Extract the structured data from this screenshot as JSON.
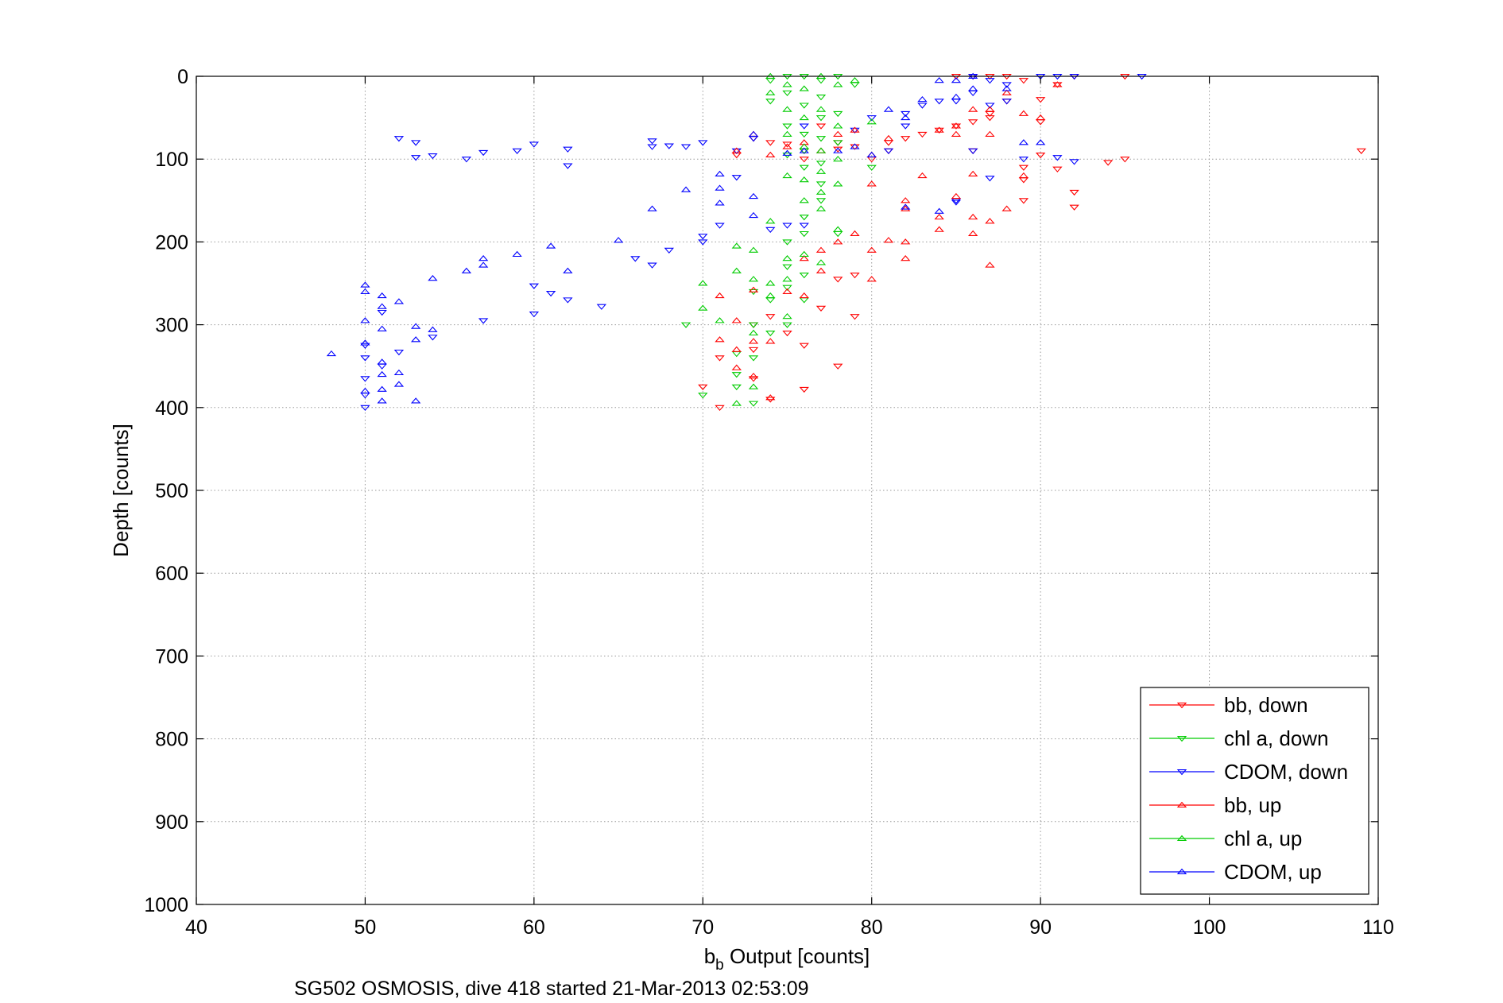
{
  "chart_data": {
    "type": "scatter",
    "title": "",
    "caption": "SG502 OSMOSIS, dive 418 started 21-Mar-2013 02:53:09",
    "xlabel_main": "b",
    "xlabel_sub": "b",
    "xlabel_rest": " Output [counts]",
    "ylabel": "Depth [counts]",
    "xlim": [
      40,
      110
    ],
    "ylim": [
      0,
      1000
    ],
    "y_reversed": true,
    "grid": true,
    "legend_placement": "bottom-right",
    "x_ticks": [
      40,
      50,
      60,
      70,
      80,
      90,
      100,
      110
    ],
    "y_ticks": [
      0,
      100,
      200,
      300,
      400,
      500,
      600,
      700,
      800,
      900,
      1000
    ],
    "series": [
      {
        "name": "bb, down",
        "color": "#ff0000",
        "marker": "triangle-down",
        "points": [
          [
            72,
            95
          ],
          [
            73,
            75
          ],
          [
            74,
            80
          ],
          [
            75,
            82
          ],
          [
            76,
            100
          ],
          [
            76,
            90
          ],
          [
            77,
            60
          ],
          [
            78,
            80
          ],
          [
            78,
            88
          ],
          [
            79,
            85
          ],
          [
            80,
            100
          ],
          [
            81,
            80
          ],
          [
            81,
            90
          ],
          [
            82,
            75
          ],
          [
            83,
            70
          ],
          [
            84,
            65
          ],
          [
            85,
            0
          ],
          [
            85,
            60
          ],
          [
            86,
            0
          ],
          [
            86,
            55
          ],
          [
            86,
            90
          ],
          [
            87,
            0
          ],
          [
            87,
            45
          ],
          [
            87,
            50
          ],
          [
            88,
            0
          ],
          [
            88,
            30
          ],
          [
            89,
            5
          ],
          [
            89,
            110
          ],
          [
            89,
            125
          ],
          [
            89,
            150
          ],
          [
            90,
            28
          ],
          [
            90,
            55
          ],
          [
            90,
            95
          ],
          [
            91,
            10
          ],
          [
            91,
            112
          ],
          [
            92,
            0
          ],
          [
            92,
            140
          ],
          [
            92,
            158
          ],
          [
            94,
            104
          ],
          [
            95,
            0
          ],
          [
            95,
            100
          ],
          [
            109,
            90
          ],
          [
            73,
            300
          ],
          [
            73,
            330
          ],
          [
            74,
            390
          ],
          [
            75,
            310
          ],
          [
            76,
            325
          ],
          [
            77,
            280
          ],
          [
            78,
            245
          ],
          [
            78,
            350
          ],
          [
            79,
            240
          ],
          [
            79,
            290
          ],
          [
            73,
            365
          ],
          [
            71,
            340
          ],
          [
            71,
            400
          ],
          [
            70,
            375
          ],
          [
            74,
            290
          ],
          [
            76,
            378
          ]
        ]
      },
      {
        "name": "chl a, down",
        "color": "#00cc00",
        "marker": "triangle-down",
        "points": [
          [
            74,
            5
          ],
          [
            74,
            30
          ],
          [
            75,
            0
          ],
          [
            75,
            20
          ],
          [
            75,
            60
          ],
          [
            76,
            0
          ],
          [
            76,
            35
          ],
          [
            76,
            70
          ],
          [
            76,
            90
          ],
          [
            77,
            5
          ],
          [
            77,
            25
          ],
          [
            77,
            50
          ],
          [
            77,
            75
          ],
          [
            77,
            105
          ],
          [
            78,
            0
          ],
          [
            78,
            45
          ],
          [
            78,
            80
          ],
          [
            79,
            10
          ],
          [
            80,
            110
          ],
          [
            75,
            95
          ],
          [
            76,
            110
          ],
          [
            77,
            130
          ],
          [
            77,
            150
          ],
          [
            76,
            170
          ],
          [
            75,
            200
          ],
          [
            76,
            190
          ],
          [
            78,
            190
          ],
          [
            72,
            335
          ],
          [
            73,
            260
          ],
          [
            73,
            300
          ],
          [
            73,
            340
          ],
          [
            74,
            270
          ],
          [
            74,
            310
          ],
          [
            75,
            230
          ],
          [
            75,
            255
          ],
          [
            75,
            300
          ],
          [
            76,
            240
          ],
          [
            76,
            270
          ],
          [
            72,
            360
          ],
          [
            72,
            375
          ],
          [
            73,
            395
          ],
          [
            70,
            385
          ],
          [
            69,
            300
          ]
        ]
      },
      {
        "name": "CDOM, down",
        "color": "#0000ff",
        "marker": "triangle-down",
        "points": [
          [
            52,
            75
          ],
          [
            53,
            80
          ],
          [
            53,
            98
          ],
          [
            54,
            96
          ],
          [
            56,
            100
          ],
          [
            57,
            92
          ],
          [
            59,
            90
          ],
          [
            60,
            82
          ],
          [
            62,
            88
          ],
          [
            62,
            108
          ],
          [
            67,
            78
          ],
          [
            67,
            85
          ],
          [
            68,
            84
          ],
          [
            69,
            85
          ],
          [
            70,
            80
          ],
          [
            72,
            90
          ],
          [
            73,
            75
          ],
          [
            76,
            60
          ],
          [
            76,
            180
          ],
          [
            79,
            65
          ],
          [
            80,
            50
          ],
          [
            81,
            90
          ],
          [
            82,
            45
          ],
          [
            82,
            60
          ],
          [
            83,
            35
          ],
          [
            84,
            30
          ],
          [
            85,
            30
          ],
          [
            86,
            0
          ],
          [
            86,
            20
          ],
          [
            86,
            90
          ],
          [
            87,
            5
          ],
          [
            87,
            35
          ],
          [
            88,
            10
          ],
          [
            88,
            30
          ],
          [
            89,
            100
          ],
          [
            90,
            0
          ],
          [
            91,
            0
          ],
          [
            91,
            98
          ],
          [
            92,
            0
          ],
          [
            92,
            103
          ],
          [
            96,
            0
          ],
          [
            70,
            193
          ],
          [
            70,
            200
          ],
          [
            71,
            180
          ],
          [
            72,
            122
          ],
          [
            74,
            185
          ],
          [
            75,
            180
          ],
          [
            87,
            123
          ],
          [
            50,
            325
          ],
          [
            50,
            340
          ],
          [
            50,
            365
          ],
          [
            50,
            385
          ],
          [
            50,
            400
          ],
          [
            51,
            285
          ],
          [
            51,
            350
          ],
          [
            52,
            333
          ],
          [
            54,
            315
          ],
          [
            57,
            295
          ],
          [
            60,
            287
          ],
          [
            62,
            270
          ],
          [
            64,
            278
          ],
          [
            66,
            220
          ],
          [
            67,
            228
          ],
          [
            60,
            253
          ],
          [
            61,
            262
          ],
          [
            68,
            210
          ],
          [
            85,
            150
          ],
          [
            85,
            152
          ]
        ]
      },
      {
        "name": "bb, up",
        "color": "#ff0000",
        "marker": "triangle-up",
        "points": [
          [
            72,
            90
          ],
          [
            73,
            70
          ],
          [
            74,
            95
          ],
          [
            75,
            85
          ],
          [
            76,
            80
          ],
          [
            77,
            90
          ],
          [
            78,
            70
          ],
          [
            79,
            65
          ],
          [
            80,
            95
          ],
          [
            80,
            130
          ],
          [
            81,
            75
          ],
          [
            81,
            198
          ],
          [
            82,
            150
          ],
          [
            82,
            160
          ],
          [
            83,
            120
          ],
          [
            84,
            65
          ],
          [
            84,
            185
          ],
          [
            85,
            60
          ],
          [
            85,
            70
          ],
          [
            85,
            145
          ],
          [
            86,
            40
          ],
          [
            86,
            118
          ],
          [
            86,
            190
          ],
          [
            87,
            40
          ],
          [
            87,
            70
          ],
          [
            87,
            175
          ],
          [
            87,
            228
          ],
          [
            88,
            20
          ],
          [
            88,
            160
          ],
          [
            89,
            45
          ],
          [
            89,
            120
          ],
          [
            90,
            50
          ],
          [
            91,
            10
          ],
          [
            71,
            265
          ],
          [
            71,
            318
          ],
          [
            72,
            295
          ],
          [
            72,
            330
          ],
          [
            72,
            352
          ],
          [
            73,
            258
          ],
          [
            73,
            320
          ],
          [
            73,
            362
          ],
          [
            74,
            320
          ],
          [
            74,
            388
          ],
          [
            75,
            260
          ],
          [
            76,
            220
          ],
          [
            76,
            265
          ],
          [
            77,
            210
          ],
          [
            77,
            235
          ],
          [
            78,
            200
          ],
          [
            79,
            190
          ],
          [
            80,
            210
          ],
          [
            80,
            245
          ],
          [
            82,
            200
          ],
          [
            82,
            220
          ],
          [
            84,
            170
          ],
          [
            86,
            170
          ]
        ]
      },
      {
        "name": "chl a, up",
        "color": "#00cc00",
        "marker": "triangle-up",
        "points": [
          [
            74,
            0
          ],
          [
            74,
            20
          ],
          [
            75,
            10
          ],
          [
            75,
            40
          ],
          [
            75,
            70
          ],
          [
            76,
            15
          ],
          [
            76,
            50
          ],
          [
            76,
            85
          ],
          [
            76,
            125
          ],
          [
            77,
            0
          ],
          [
            77,
            40
          ],
          [
            77,
            90
          ],
          [
            77,
            115
          ],
          [
            77,
            140
          ],
          [
            78,
            10
          ],
          [
            78,
            60
          ],
          [
            78,
            100
          ],
          [
            78,
            130
          ],
          [
            79,
            5
          ],
          [
            80,
            55
          ],
          [
            75,
            120
          ],
          [
            76,
            150
          ],
          [
            77,
            160
          ],
          [
            78,
            185
          ],
          [
            72,
            205
          ],
          [
            72,
            235
          ],
          [
            73,
            210
          ],
          [
            73,
            245
          ],
          [
            74,
            175
          ],
          [
            74,
            250
          ],
          [
            74,
            265
          ],
          [
            75,
            220
          ],
          [
            75,
            245
          ],
          [
            75,
            290
          ],
          [
            76,
            215
          ],
          [
            77,
            225
          ],
          [
            73,
            310
          ],
          [
            72,
            395
          ],
          [
            73,
            375
          ],
          [
            70,
            250
          ],
          [
            70,
            280
          ],
          [
            71,
            295
          ]
        ]
      },
      {
        "name": "CDOM, up",
        "color": "#0000ff",
        "marker": "triangle-up",
        "points": [
          [
            48,
            335
          ],
          [
            50,
            252
          ],
          [
            50,
            260
          ],
          [
            50,
            295
          ],
          [
            50,
            322
          ],
          [
            50,
            380
          ],
          [
            51,
            265
          ],
          [
            51,
            278
          ],
          [
            51,
            305
          ],
          [
            51,
            345
          ],
          [
            51,
            360
          ],
          [
            51,
            378
          ],
          [
            51,
            392
          ],
          [
            52,
            272
          ],
          [
            52,
            358
          ],
          [
            52,
            372
          ],
          [
            53,
            302
          ],
          [
            53,
            318
          ],
          [
            53,
            392
          ],
          [
            54,
            306
          ],
          [
            54,
            244
          ],
          [
            56,
            235
          ],
          [
            57,
            220
          ],
          [
            57,
            228
          ],
          [
            59,
            215
          ],
          [
            61,
            205
          ],
          [
            62,
            235
          ],
          [
            65,
            198
          ],
          [
            67,
            160
          ],
          [
            69,
            137
          ],
          [
            71,
            118
          ],
          [
            71,
            135
          ],
          [
            71,
            153
          ],
          [
            73,
            145
          ],
          [
            73,
            168
          ],
          [
            75,
            93
          ],
          [
            76,
            90
          ],
          [
            78,
            90
          ],
          [
            79,
            85
          ],
          [
            80,
            95
          ],
          [
            81,
            40
          ],
          [
            82,
            50
          ],
          [
            82,
            158
          ],
          [
            83,
            28
          ],
          [
            84,
            5
          ],
          [
            84,
            163
          ],
          [
            85,
            5
          ],
          [
            85,
            25
          ],
          [
            86,
            0
          ],
          [
            86,
            15
          ],
          [
            88,
            15
          ],
          [
            89,
            80
          ],
          [
            90,
            80
          ],
          [
            73,
            70
          ]
        ]
      }
    ]
  }
}
